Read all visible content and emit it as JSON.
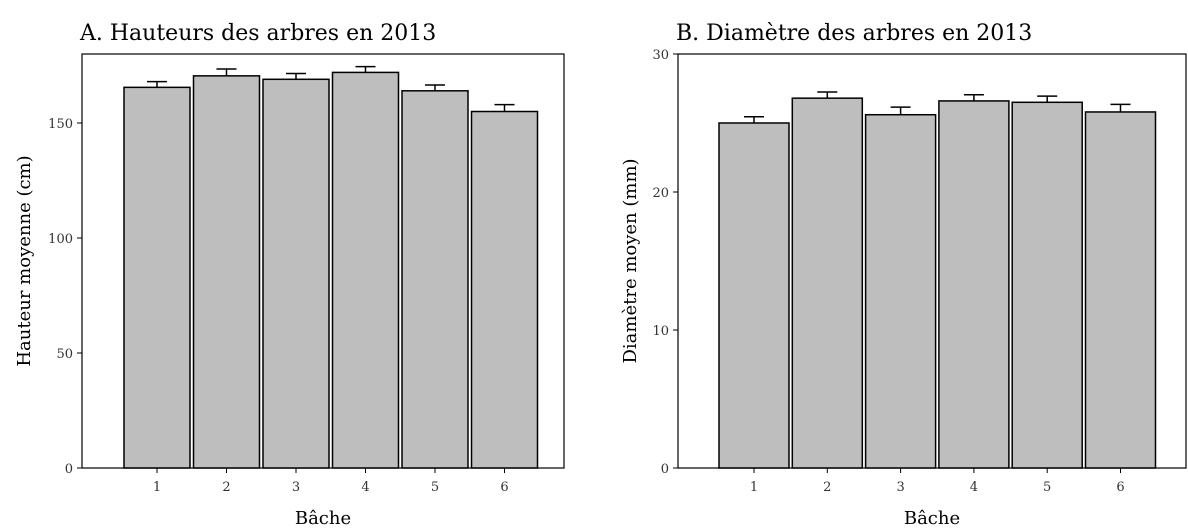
{
  "chart_data": [
    {
      "type": "bar",
      "title": "A. Hauteurs des arbres en 2013",
      "xlabel": "Bâche",
      "ylabel": "Hauteur moyenne (cm)",
      "categories": [
        "1",
        "2",
        "3",
        "4",
        "5",
        "6"
      ],
      "values": [
        165.5,
        170.5,
        169,
        172,
        164,
        155
      ],
      "error": [
        2.5,
        3,
        2.5,
        2.5,
        2.5,
        3
      ],
      "ylim": [
        0,
        180
      ],
      "yticks": [
        0,
        50,
        100,
        150
      ],
      "grid": false
    },
    {
      "type": "bar",
      "title": "B. Diamètre des arbres en 2013",
      "xlabel": "Bâche",
      "ylabel": "Diamètre moyen (mm)",
      "categories": [
        "1",
        "2",
        "3",
        "4",
        "5",
        "6"
      ],
      "values": [
        25.0,
        26.8,
        25.6,
        26.6,
        26.5,
        25.8
      ],
      "error": [
        0.45,
        0.45,
        0.55,
        0.45,
        0.45,
        0.55
      ],
      "ylim": [
        0,
        30
      ],
      "yticks": [
        0,
        10,
        20,
        30
      ],
      "grid": false
    }
  ]
}
